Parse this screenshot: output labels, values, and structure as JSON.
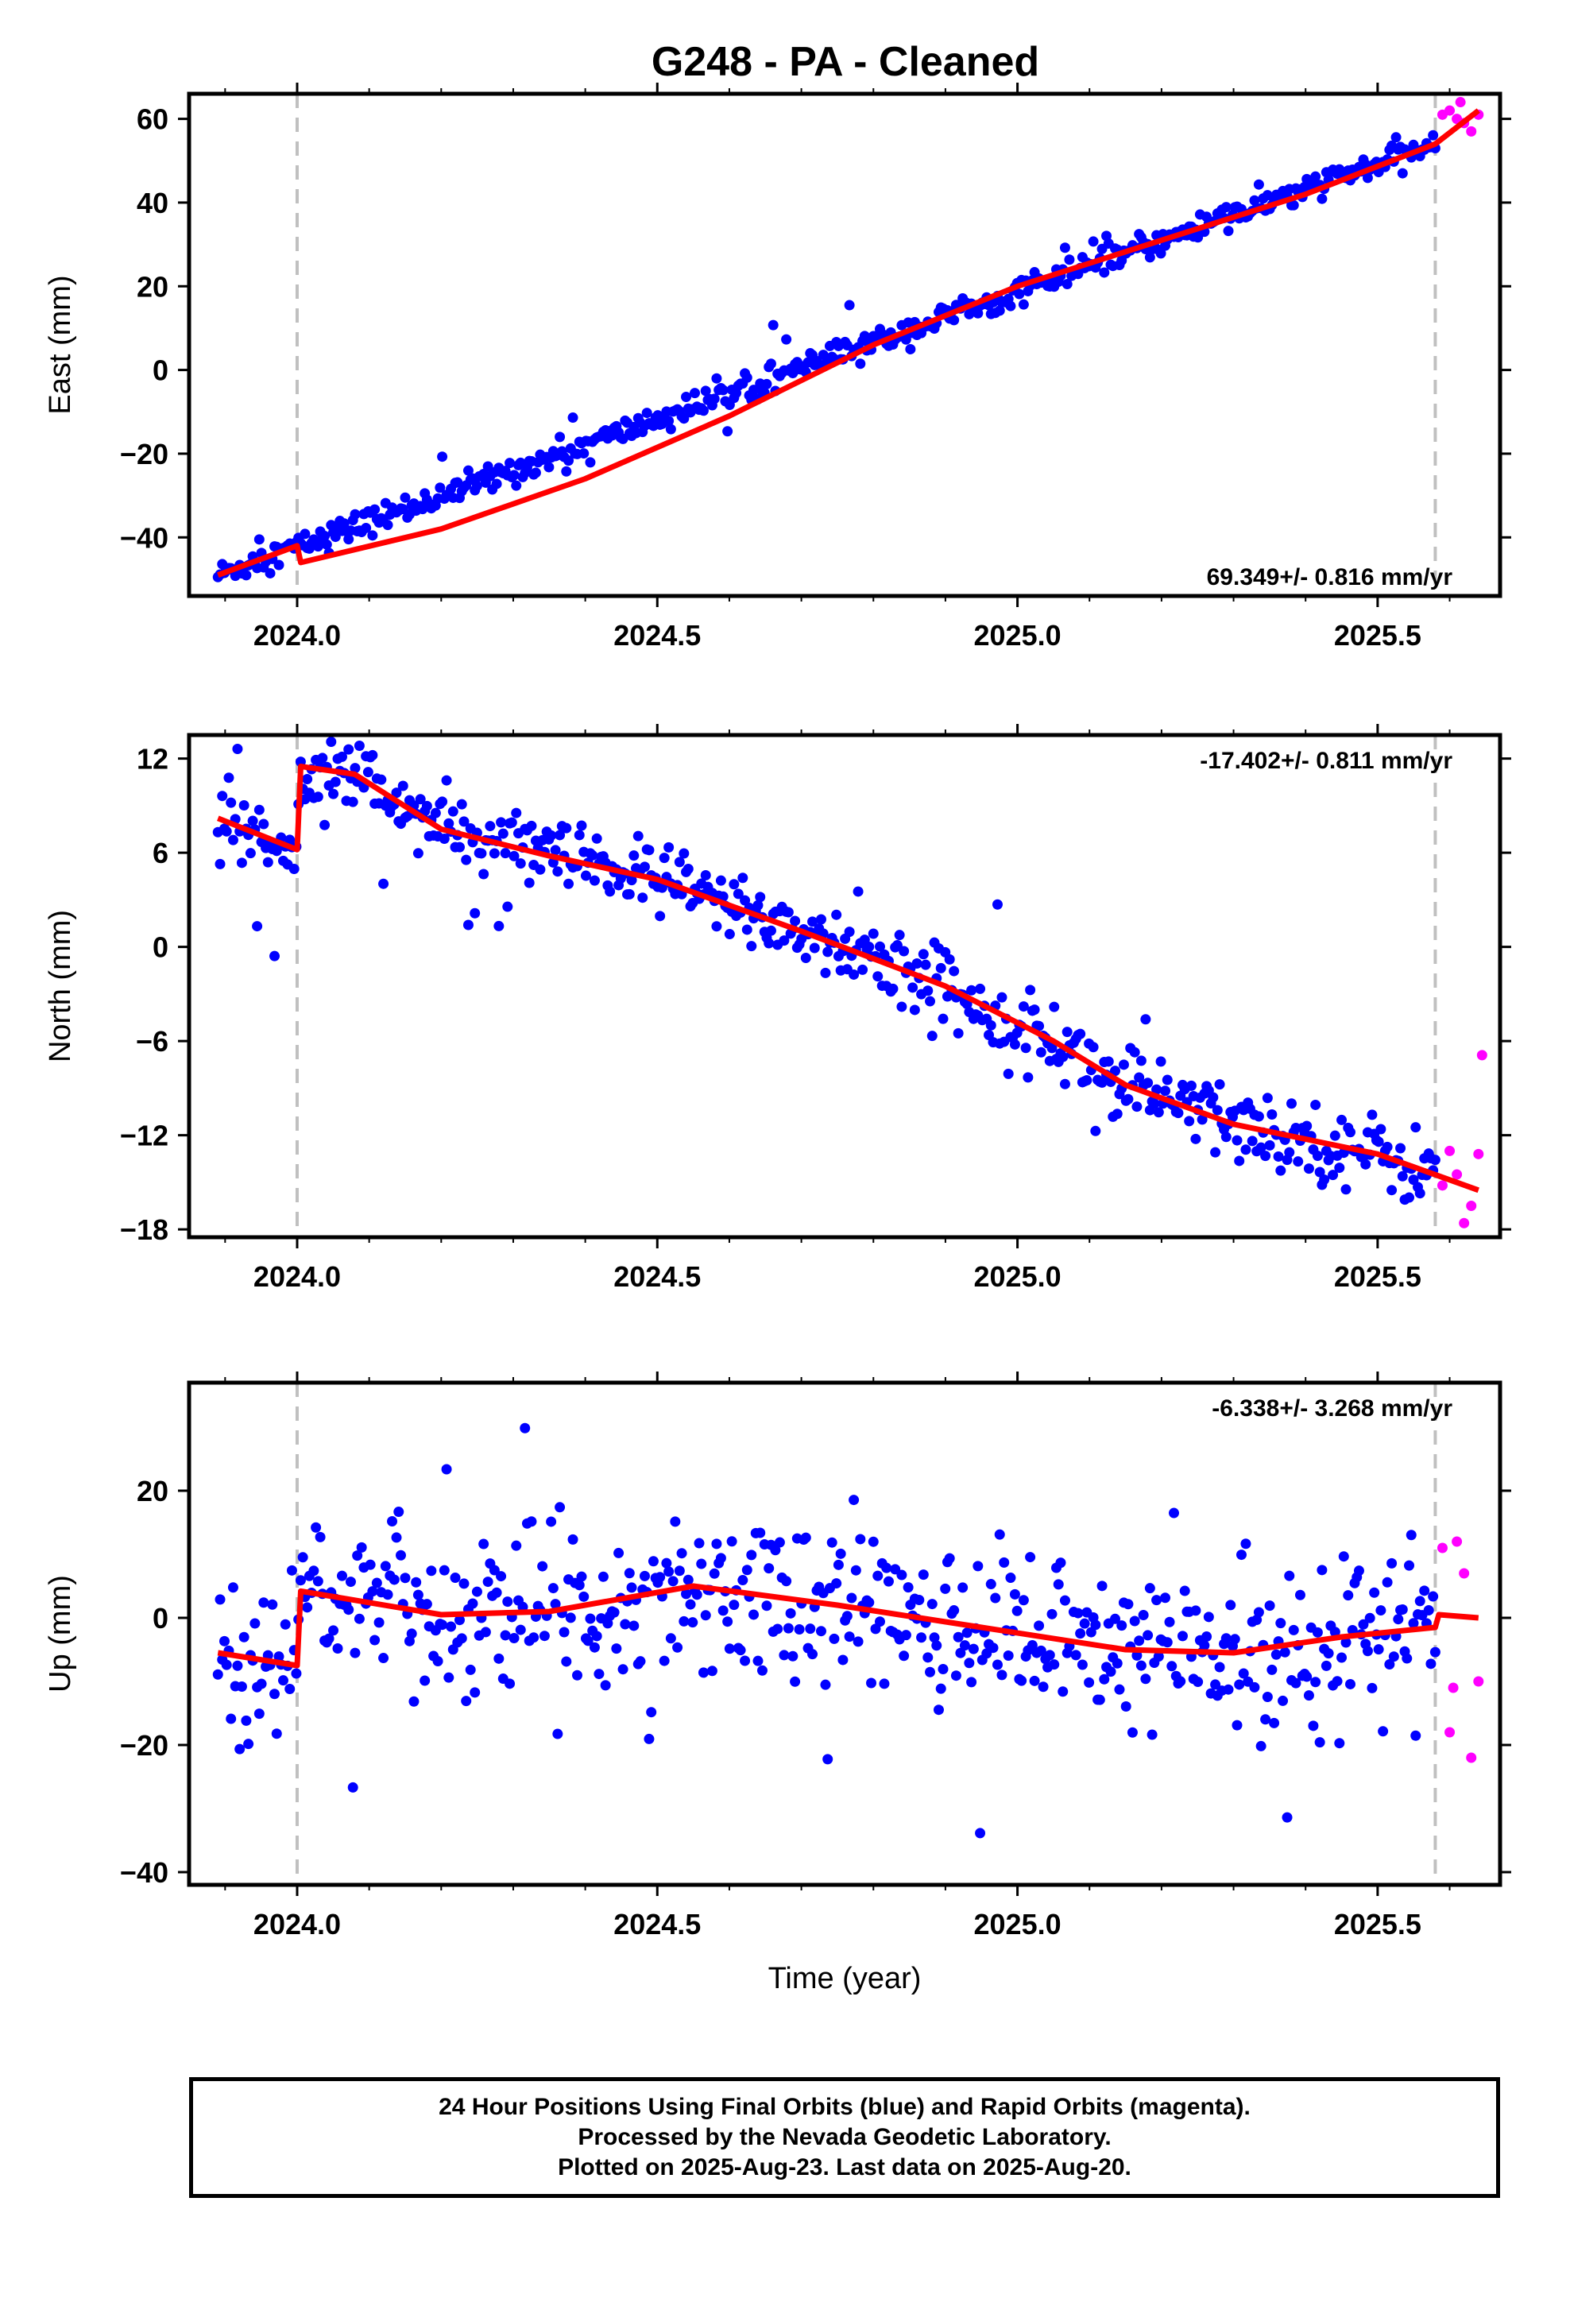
{
  "title": "G248  - PA - Cleaned",
  "colors": {
    "final_orbits": "#0000ff",
    "rapid_orbits": "#ff00ff",
    "model": "#ff0000",
    "event_line": "#c0c0c0"
  },
  "footer": {
    "line1": "24 Hour Positions Using Final Orbits (blue) and Rapid Orbits (magenta).",
    "line2": "Processed by the Nevada Geodetic Laboratory.",
    "line3": "Plotted on 2025-Aug-23. Last data on 2025-Aug-20."
  },
  "chart_data": [
    {
      "type": "scatter",
      "panel": "east",
      "ylabel": "East (mm)",
      "xlabel": "",
      "xlim": [
        2023.85,
        2025.67
      ],
      "ylim": [
        -54,
        66
      ],
      "x_ticks": [
        "2024.0",
        "2024.5",
        "2025.0",
        "2025.5"
      ],
      "y_ticks": [
        "-40",
        "-20",
        "0",
        "20",
        "40",
        "60"
      ],
      "y_tick_values": [
        -40,
        -20,
        0,
        20,
        40,
        60
      ],
      "rate": "69.349+/- 0.816 mm/yr",
      "rate_position": "bottom-right",
      "event_lines": [
        2024.0,
        2025.58
      ],
      "series": [
        {
          "name": "Final Orbits",
          "trend": "linear",
          "start": [
            2023.89,
            -49
          ],
          "end": [
            2025.58,
            54
          ],
          "noise_mm": 1.6
        },
        {
          "name": "Rapid Orbits",
          "points": [
            [
              2025.59,
              61
            ],
            [
              2025.6,
              62
            ],
            [
              2025.61,
              60
            ],
            [
              2025.615,
              64
            ],
            [
              2025.62,
              59
            ],
            [
              2025.63,
              57
            ],
            [
              2025.64,
              61
            ]
          ]
        },
        {
          "name": "Model",
          "points": [
            [
              2023.89,
              -49
            ],
            [
              2024.0,
              -42
            ],
            [
              2024.005,
              -46
            ],
            [
              2024.2,
              -38
            ],
            [
              2024.4,
              -26
            ],
            [
              2024.6,
              -11
            ],
            [
              2024.8,
              6
            ],
            [
              2025.0,
              20
            ],
            [
              2025.2,
              31
            ],
            [
              2025.4,
              42
            ],
            [
              2025.58,
              54
            ],
            [
              2025.64,
              62
            ]
          ]
        }
      ]
    },
    {
      "type": "scatter",
      "panel": "north",
      "ylabel": "North (mm)",
      "xlabel": "",
      "xlim": [
        2023.85,
        2025.67
      ],
      "ylim": [
        -18.5,
        13.5
      ],
      "x_ticks": [
        "2024.0",
        "2024.5",
        "2025.0",
        "2025.5"
      ],
      "y_ticks": [
        "12",
        "6",
        "0",
        "-6",
        "-12",
        "-18"
      ],
      "y_tick_values": [
        12,
        6,
        0,
        -6,
        -12,
        -18
      ],
      "rate": "-17.402+/- 0.811 mm/yr",
      "rate_position": "top-right",
      "event_lines": [
        2024.0,
        2025.58
      ],
      "series": [
        {
          "name": "Final Orbits",
          "trend": "model",
          "noise_mm": 1.2
        },
        {
          "name": "Rapid Orbits",
          "points": [
            [
              2025.59,
              -15.2
            ],
            [
              2025.6,
              -13
            ],
            [
              2025.61,
              -14.5
            ],
            [
              2025.62,
              -17.6
            ],
            [
              2025.63,
              -16.5
            ],
            [
              2025.64,
              -13.2
            ],
            [
              2025.645,
              -6.9
            ]
          ]
        },
        {
          "name": "Model",
          "points": [
            [
              2023.89,
              8.2
            ],
            [
              2024.0,
              6.2
            ],
            [
              2024.005,
              11.5
            ],
            [
              2024.08,
              11.0
            ],
            [
              2024.2,
              7.5
            ],
            [
              2024.35,
              5.8
            ],
            [
              2024.5,
              4.3
            ],
            [
              2024.7,
              1.0
            ],
            [
              2024.9,
              -2.5
            ],
            [
              2025.05,
              -6.0
            ],
            [
              2025.15,
              -8.8
            ],
            [
              2025.3,
              -11.3
            ],
            [
              2025.5,
              -13.2
            ],
            [
              2025.64,
              -15.5
            ]
          ]
        }
      ]
    },
    {
      "type": "scatter",
      "panel": "up",
      "ylabel": "Up (mm)",
      "xlabel": "Time (year)",
      "xlim": [
        2023.85,
        2025.67
      ],
      "ylim": [
        -42,
        37
      ],
      "x_ticks": [
        "2024.0",
        "2024.5",
        "2025.0",
        "2025.5"
      ],
      "y_ticks": [
        "20",
        "0",
        "-20",
        "-40"
      ],
      "y_tick_values": [
        20,
        0,
        -20,
        -40
      ],
      "rate": "-6.338+/- 3.268 mm/yr",
      "rate_position": "top-right",
      "event_lines": [
        2024.0,
        2025.58
      ],
      "series": [
        {
          "name": "Final Orbits",
          "trend": "model",
          "noise_mm": 6.5
        },
        {
          "name": "Rapid Orbits",
          "points": [
            [
              2025.59,
              11
            ],
            [
              2025.6,
              -18
            ],
            [
              2025.605,
              -11
            ],
            [
              2025.61,
              12
            ],
            [
              2025.62,
              7
            ],
            [
              2025.63,
              -22
            ],
            [
              2025.64,
              -10
            ]
          ]
        },
        {
          "name": "Model",
          "points": [
            [
              2023.89,
              -5.5
            ],
            [
              2024.0,
              -7.5
            ],
            [
              2024.005,
              4.2
            ],
            [
              2024.2,
              0.5
            ],
            [
              2024.35,
              1.0
            ],
            [
              2024.55,
              5.0
            ],
            [
              2024.75,
              2.0
            ],
            [
              2024.95,
              -1.5
            ],
            [
              2025.15,
              -5.0
            ],
            [
              2025.3,
              -5.5
            ],
            [
              2025.45,
              -3.0
            ],
            [
              2025.58,
              -1.5
            ],
            [
              2025.585,
              0.5
            ],
            [
              2025.64,
              0.0
            ]
          ]
        }
      ]
    }
  ]
}
